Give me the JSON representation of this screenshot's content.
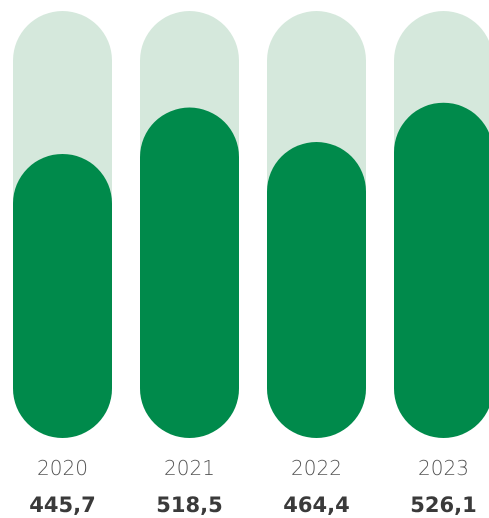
{
  "chart_data": {
    "type": "bar",
    "categories": [
      "2020",
      "2021",
      "2022",
      "2023"
    ],
    "values": [
      445.7,
      518.5,
      464.4,
      526.1
    ],
    "value_labels": [
      "445,7",
      "518,5",
      "464,4",
      "526,1"
    ],
    "title": "",
    "xlabel": "",
    "ylabel": "",
    "ylim": [
      0,
      670
    ],
    "grid": false,
    "legend": "none"
  },
  "colors": {
    "bar": "#008a4b",
    "track": "#d5e8dc",
    "year_text": "#555555",
    "value_text": "#3a3a3a"
  }
}
